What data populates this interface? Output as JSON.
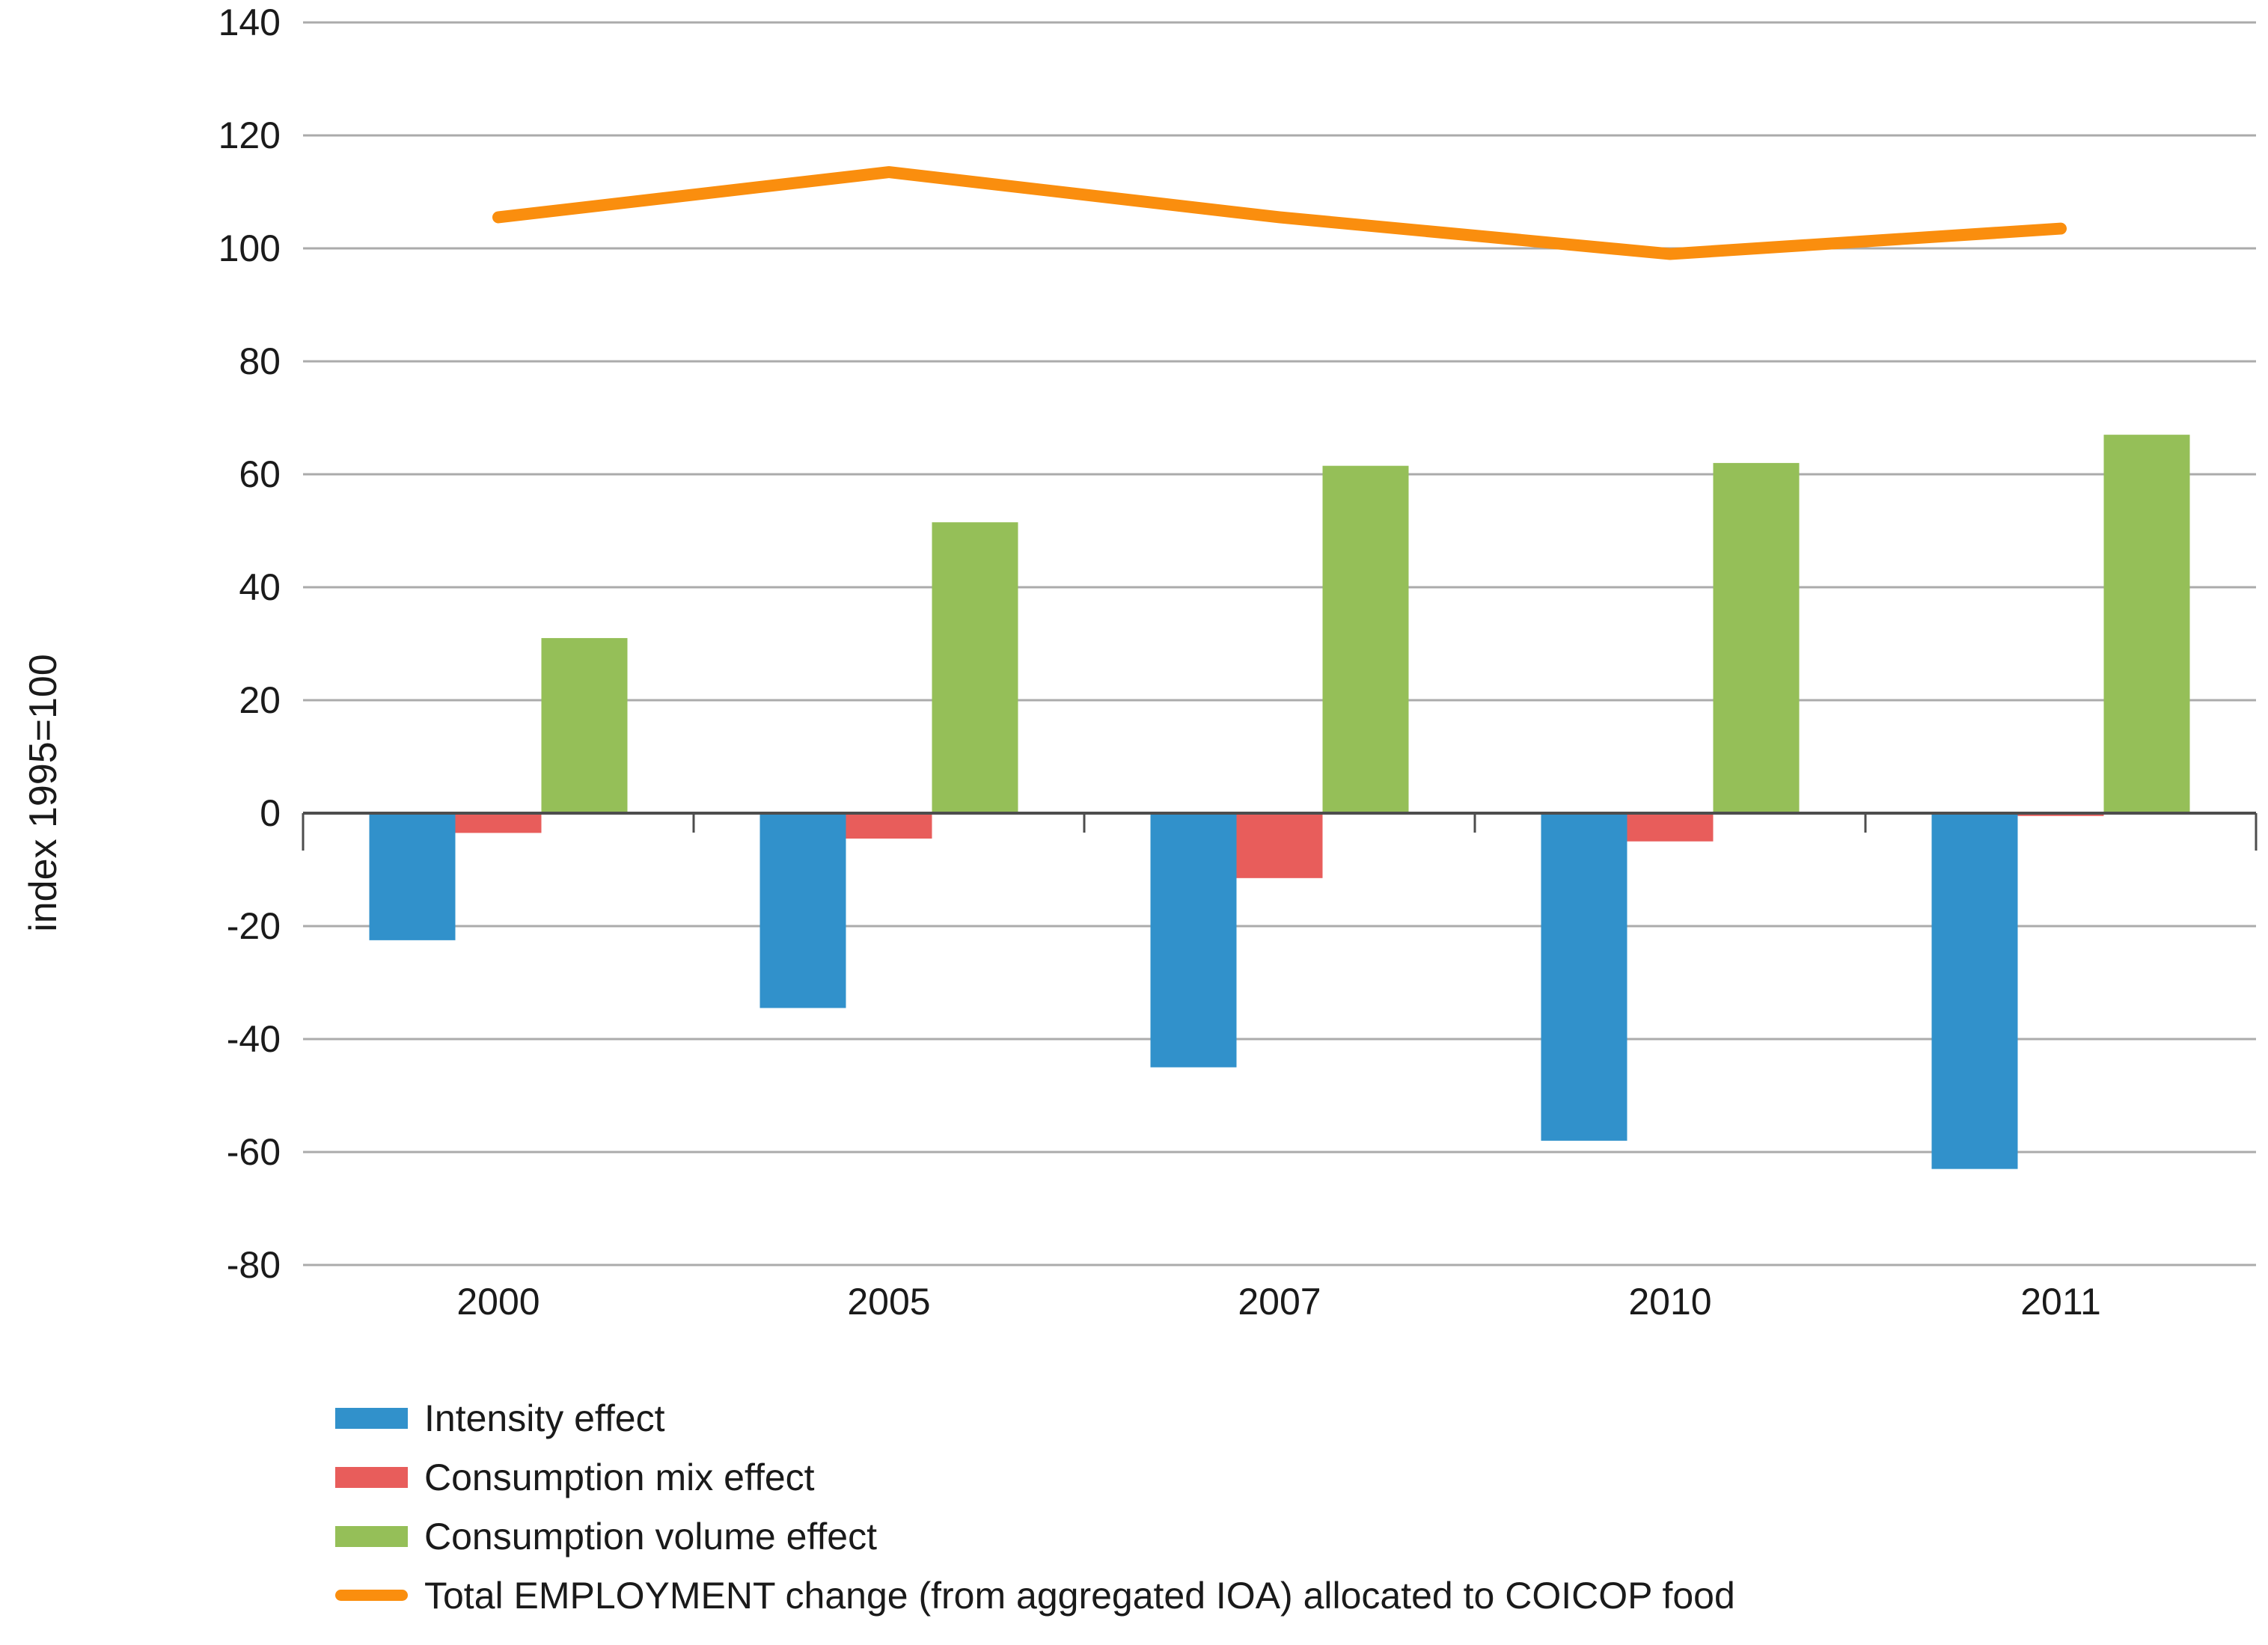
{
  "chart_data": {
    "type": "bar",
    "title": "",
    "xlabel": "",
    "ylabel": "index 1995=100",
    "categories": [
      "2000",
      "2005",
      "2007",
      "2010",
      "2011"
    ],
    "series": [
      {
        "name": "Intensity effect",
        "type": "bar",
        "color": "#3191CB",
        "values": [
          -22.5,
          -34.5,
          -45,
          -58,
          -63
        ]
      },
      {
        "name": "Consumption mix effect",
        "type": "bar",
        "color": "#E85D5B",
        "values": [
          -3.5,
          -4.5,
          -11.5,
          -5,
          -0.5
        ]
      },
      {
        "name": "Consumption volume effect",
        "type": "bar",
        "color": "#95BF58",
        "values": [
          31,
          51.5,
          61.5,
          62,
          67
        ]
      },
      {
        "name": "Total EMPLOYMENT change (from aggregated IOA) allocated to COICOP food",
        "type": "line",
        "color": "#FA8E0E",
        "values": [
          105.5,
          113.5,
          105.5,
          99,
          103.5
        ]
      }
    ],
    "ylim": [
      -80,
      140
    ],
    "y_tick_step": 20,
    "y_ticks": [
      "140",
      "120",
      "100",
      "80",
      "60",
      "40",
      "20",
      "0",
      "-20",
      "-40",
      "-60",
      "-80"
    ],
    "grid": "horizontal gridlines on",
    "legend_position": "bottom-left",
    "colors": {
      "grid_line": "#ABABAB",
      "zero_axis": "#4D4D4D",
      "text": "#1A1A1A",
      "background": "#FFFFFF"
    }
  }
}
